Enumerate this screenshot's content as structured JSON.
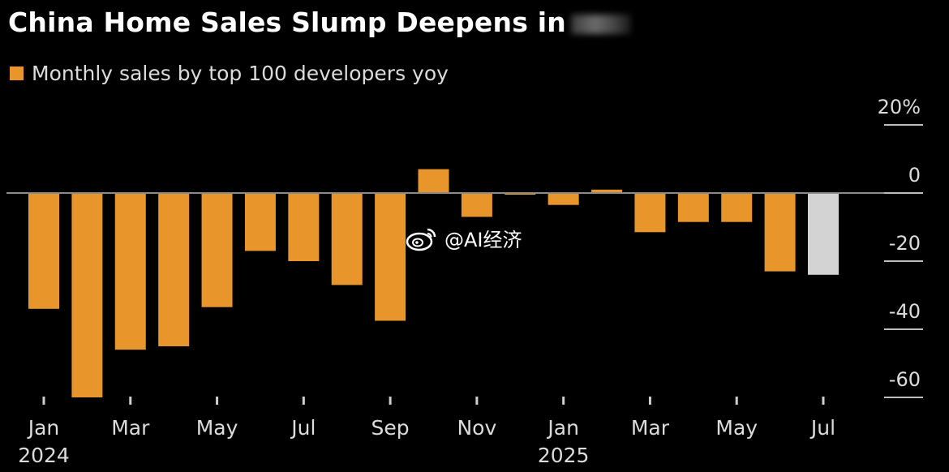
{
  "title": "China Home Sales Slump Deepens in",
  "legend_label": "Monthly sales by top 100 developers yoy",
  "watermark": "@AI经济",
  "colors": {
    "bar": "#e8952b",
    "highlight": "#d3d3d3",
    "background": "#000000"
  },
  "chart_data": {
    "type": "bar",
    "categories": [
      "Jan 2024",
      "Feb 2024",
      "Mar 2024",
      "Apr 2024",
      "May 2024",
      "Jun 2024",
      "Jul 2024",
      "Aug 2024",
      "Sep 2024",
      "Oct 2024",
      "Nov 2024",
      "Dec 2024",
      "Jan 2025",
      "Feb 2025",
      "Mar 2025",
      "Apr 2025",
      "May 2025",
      "Jun 2025",
      "Jul 2025"
    ],
    "series": [
      {
        "name": "Monthly sales by top 100 developers yoy",
        "values": [
          -34,
          -60,
          -46,
          -45,
          -33.5,
          -17,
          -20,
          -27,
          -37.5,
          7,
          -7,
          -0.5,
          -3.5,
          1,
          -11.5,
          -8.5,
          -8.5,
          -23,
          -24
        ]
      }
    ],
    "highlight_index": 18,
    "ylim": [
      -60,
      20
    ],
    "y_ticks": [
      20,
      0,
      -20,
      -40,
      -60
    ],
    "y_tick_labels": [
      "20%",
      "0",
      "-20",
      "-40",
      "-60"
    ],
    "x_tick_labels": [
      {
        "index": 0,
        "month": "Jan",
        "year": "2024"
      },
      {
        "index": 2,
        "month": "Mar",
        "year": ""
      },
      {
        "index": 4,
        "month": "May",
        "year": ""
      },
      {
        "index": 6,
        "month": "Jul",
        "year": ""
      },
      {
        "index": 8,
        "month": "Sep",
        "year": ""
      },
      {
        "index": 10,
        "month": "Nov",
        "year": ""
      },
      {
        "index": 12,
        "month": "Jan",
        "year": "2025"
      },
      {
        "index": 14,
        "month": "Mar",
        "year": ""
      },
      {
        "index": 16,
        "month": "May",
        "year": ""
      },
      {
        "index": 18,
        "month": "Jul",
        "year": ""
      }
    ],
    "grid": false,
    "legend_position": "top-left"
  }
}
